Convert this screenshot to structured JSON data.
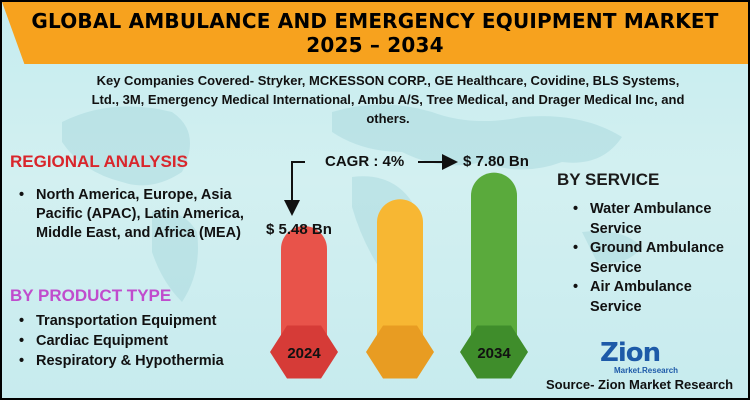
{
  "header": {
    "title_line1": "GLOBAL AMBULANCE AND EMERGENCY EQUIPMENT MARKET",
    "title_line2": "2025 – 2034"
  },
  "companies": "Key Companies Covered- Stryker, MCKESSON CORP., GE Healthcare, Covidine, BLS Systems, Ltd., 3M, Emergency Medical International, Ambu A/S, Tree Medical, and Drager Medical Inc, and others.",
  "regional": {
    "heading": "REGIONAL ANALYSIS",
    "items": [
      "North America, Europe, Asia Pacific (APAC), Latin America, Middle East, and Africa (MEA)"
    ]
  },
  "product_type": {
    "heading": "BY PRODUCT TYPE",
    "items": [
      "Transportation Equipment",
      "Cardiac Equipment",
      "Respiratory & Hypothermia"
    ]
  },
  "service": {
    "heading": "BY SERVICE",
    "items": [
      "Water Ambulance Service",
      "Ground Ambulance Service",
      "Air Ambulance Service"
    ]
  },
  "chart_data": {
    "type": "bar",
    "categories": [
      "2024",
      "",
      "2034"
    ],
    "values": [
      5.48,
      null,
      7.8
    ],
    "value_labels": [
      "$ 5.48 Bn",
      "",
      "$ 7.80 Bn"
    ],
    "cagr": "CAGR : 4%",
    "colors": [
      "#e8534a",
      "#f7b733",
      "#5aaa3c"
    ]
  },
  "logo": {
    "main": "Zion",
    "sub": "Market.Research"
  },
  "source": "Source- Zion Market Research"
}
